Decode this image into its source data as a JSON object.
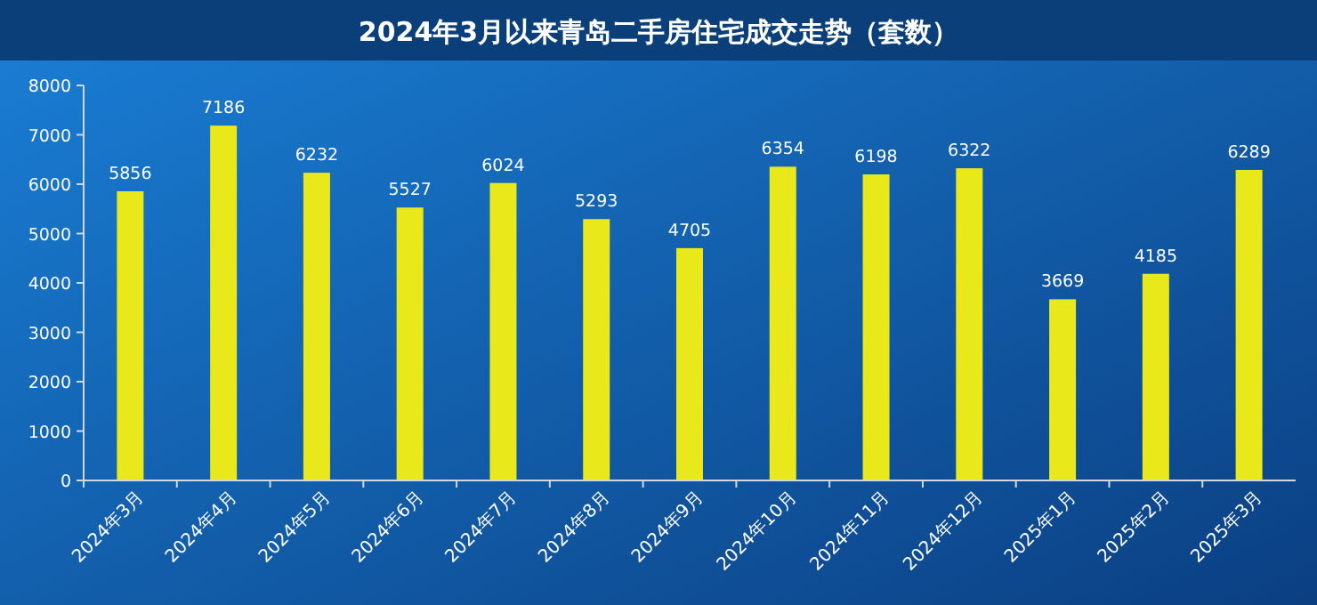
{
  "chart_data": {
    "type": "bar",
    "title": "2024年3月以来青岛二手房住宅成交走势（套数）",
    "categories": [
      "2024年3月",
      "2024年4月",
      "2024年5月",
      "2024年6月",
      "2024年7月",
      "2024年8月",
      "2024年9月",
      "2024年10月",
      "2024年11月",
      "2024年12月",
      "2025年1月",
      "2025年2月",
      "2025年3月"
    ],
    "values": [
      5856,
      7186,
      6232,
      5527,
      6024,
      5293,
      4705,
      6354,
      6198,
      6322,
      3669,
      4185,
      6289
    ],
    "color": "#e8e81a",
    "ylim": [
      0,
      8000
    ],
    "yticks": [
      0,
      1000,
      2000,
      3000,
      4000,
      5000,
      6000,
      7000,
      8000
    ],
    "data_labels": true,
    "grid": false
  }
}
